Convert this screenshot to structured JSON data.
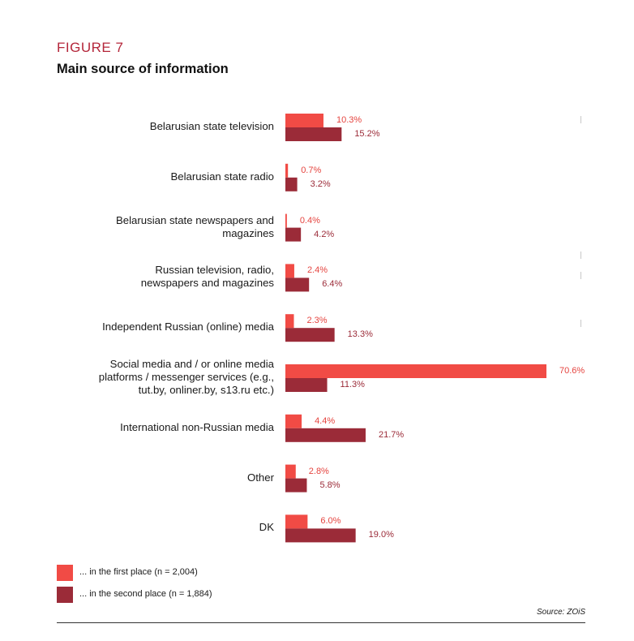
{
  "figure_label": "FIGURE 7",
  "title": "Main source of information",
  "colors": {
    "first": "#f14b45",
    "second": "#9b2b38",
    "title_accent": "#b4263a"
  },
  "chart_data": {
    "type": "bar",
    "orientation": "horizontal",
    "title": "Main source of information",
    "categories": [
      "Belarusian state television",
      "Belarusian state radio",
      "Belarusian state newspapers and magazines",
      "Russian television, radio, newspapers and magazines",
      "Independent Russian (online) media",
      "Social media and / or online media platforms / messenger services (e.g., tut.by, onliner.by, s13.ru etc.)",
      "International non-Russian media",
      "Other",
      "DK"
    ],
    "category_lines": [
      [
        "Belarusian state television"
      ],
      [
        "Belarusian state radio"
      ],
      [
        "Belarusian state newspapers and",
        "magazines"
      ],
      [
        "Russian television, radio,",
        "newspapers and magazines"
      ],
      [
        "Independent Russian (online) media"
      ],
      [
        "Social media and / or online media",
        "platforms / messenger services (e.g.,",
        "tut.by, onliner.by, s13.ru etc.)"
      ],
      [
        "International non-Russian media"
      ],
      [
        "Other"
      ],
      [
        "DK"
      ]
    ],
    "series": [
      {
        "name": "... in the first place (n = 2,004)",
        "values": [
          10.3,
          0.7,
          0.4,
          2.4,
          2.3,
          70.6,
          4.4,
          2.8,
          6.0
        ],
        "labels": [
          "10.3%",
          "0.7%",
          "0.4%",
          "2.4%",
          "2.3%",
          "70.6%",
          "4.4%",
          "2.8%",
          "6.0%"
        ]
      },
      {
        "name": "... in the second place (n = 1,884)",
        "values": [
          15.2,
          3.2,
          4.2,
          6.4,
          13.3,
          11.3,
          21.7,
          5.8,
          19.0
        ],
        "labels": [
          "15.2%",
          "3.2%",
          "4.2%",
          "6.4%",
          "13.3%",
          "11.3%",
          "21.7%",
          "5.8%",
          "19.0%"
        ]
      }
    ],
    "xlim": [
      0,
      72
    ],
    "unit": "%",
    "legend_position": "bottom-left"
  },
  "legend": {
    "first": "... in the first place (n = 2,004)",
    "second": "... in the second place (n = 1,884)"
  },
  "source": "Source: ZOiS"
}
